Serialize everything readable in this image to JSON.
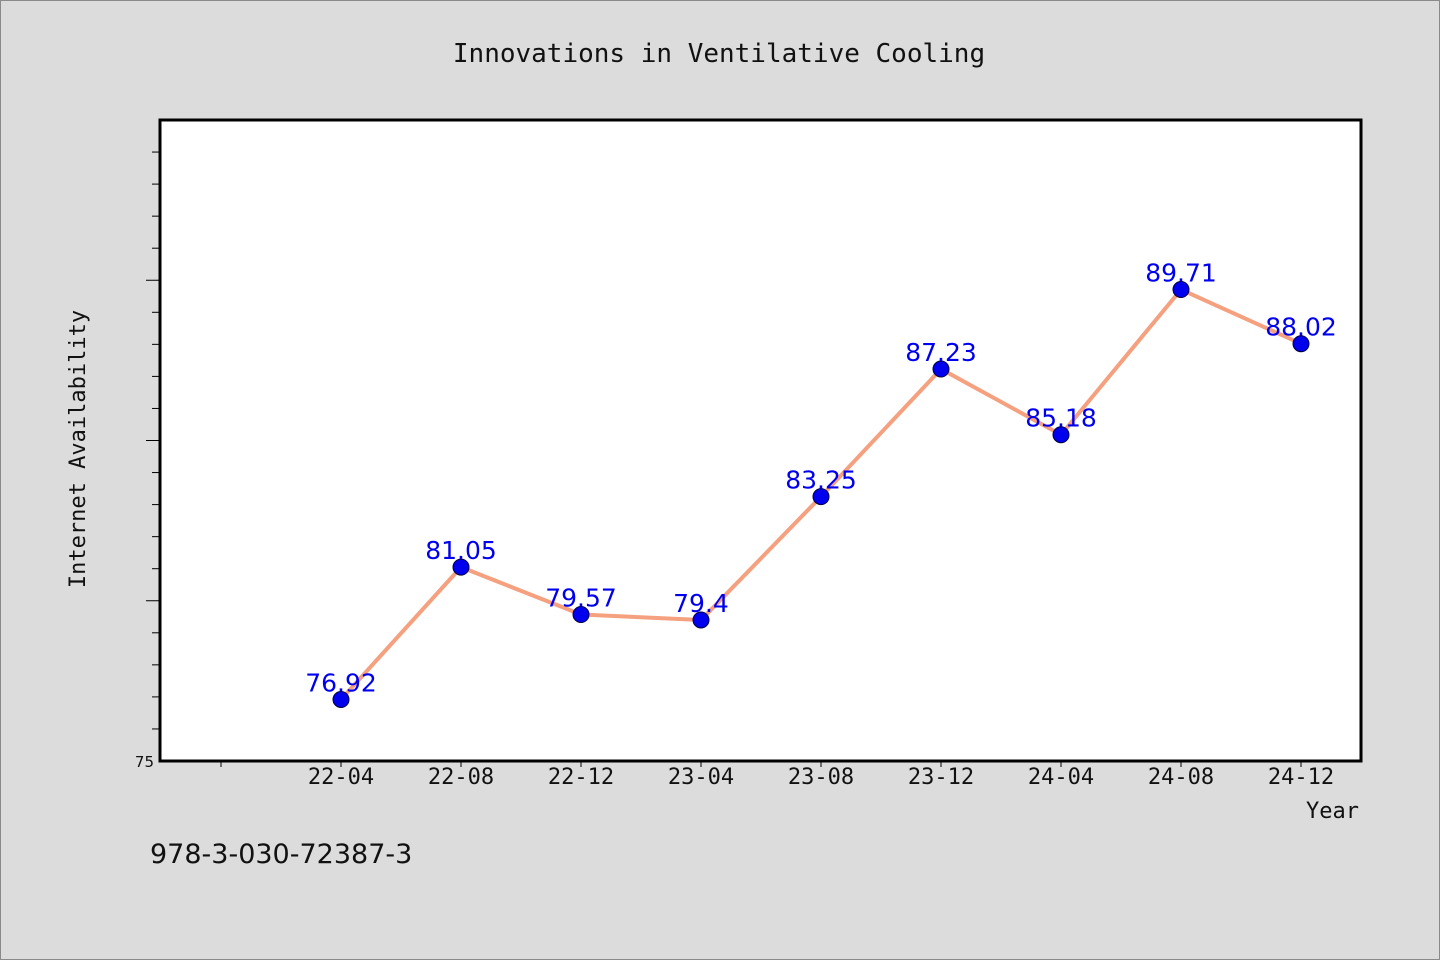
{
  "chart_data": {
    "type": "line",
    "title": "Innovations in Ventilative Cooling",
    "xlabel": "Year",
    "ylabel": "Internet Availability",
    "categories": [
      "22-04",
      "22-08",
      "22-12",
      "23-04",
      "23-08",
      "23-12",
      "24-04",
      "24-08",
      "24-12"
    ],
    "series": [
      {
        "values": [
          76.92,
          81.05,
          79.57,
          79.4,
          83.25,
          87.23,
          85.18,
          89.71,
          88.02
        ]
      }
    ],
    "value_labels": [
      "76.92",
      "81.05",
      "79.57",
      "79.4",
      "83.25",
      "87.23",
      "85.18",
      "89.71",
      "88.02"
    ],
    "ylim": [
      75,
      95
    ],
    "yticks": [
      {
        "value": 75,
        "label": "75"
      }
    ],
    "grid": false,
    "legend": "none"
  },
  "footer": {
    "code": "978-3-030-72387-3"
  },
  "colors": {
    "page_background": "#dcdcdc",
    "plot_background": "#ffffff",
    "line": "#f5a07e",
    "marker": "#0000ee",
    "data_label": "#0000ee",
    "text": "#111111"
  }
}
